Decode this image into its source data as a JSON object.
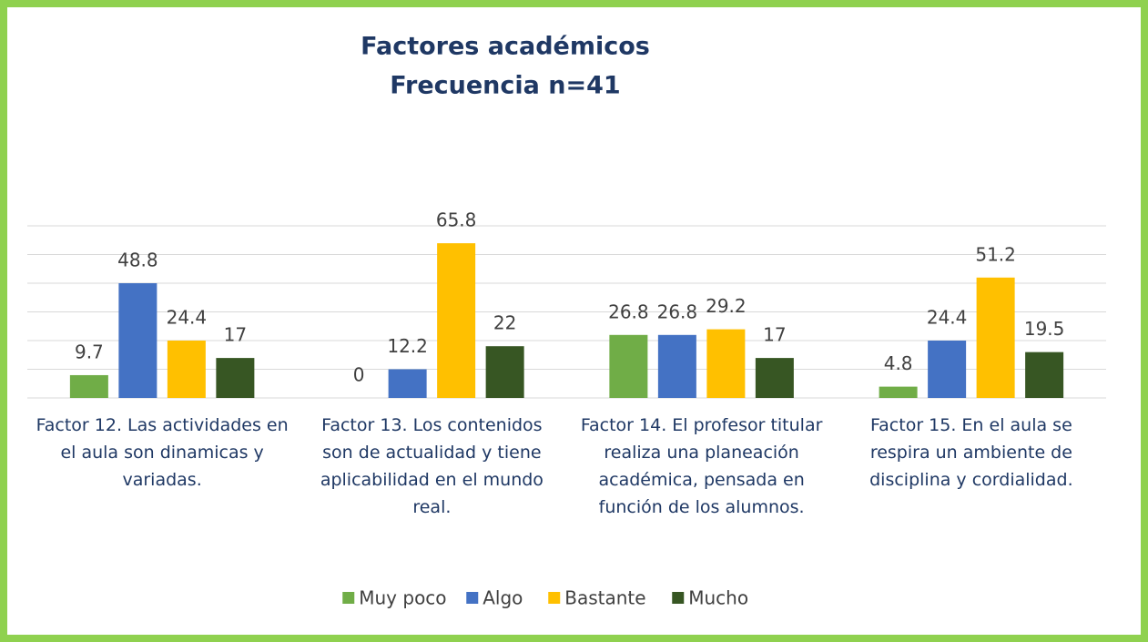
{
  "chart_data": {
    "type": "bar",
    "title": "Factores académicos",
    "subtitle": "Frecuencia n=41",
    "categories": [
      "Factor 12. Las actividades en el aula son dinamicas y variadas.",
      "Factor 13. Los contenidos son de actualidad y tiene aplicabilidad en el mundo real.",
      "Factor 14. El profesor titular realiza una planeación académica, pensada en función de los alumnos.",
      "Factor 15. En el aula se respira un ambiente de disciplina y cordialidad."
    ],
    "series": [
      {
        "name": "Muy poco",
        "color": "#70ad47",
        "values": [
          9.7,
          0,
          26.8,
          4.8
        ]
      },
      {
        "name": "Algo",
        "color": "#4472c4",
        "values": [
          48.8,
          12.2,
          26.8,
          24.4
        ]
      },
      {
        "name": "Bastante",
        "color": "#ffc000",
        "values": [
          24.4,
          65.8,
          29.2,
          51.2
        ]
      },
      {
        "name": "Mucho",
        "color": "#375623",
        "values": [
          17,
          22,
          17,
          19.5
        ]
      }
    ],
    "ylim": [
      0,
      73.2
    ],
    "yticks": [
      0,
      12.2,
      24.4,
      36.6,
      48.8,
      61,
      73.2
    ],
    "grid": true,
    "legend": "bottom"
  }
}
